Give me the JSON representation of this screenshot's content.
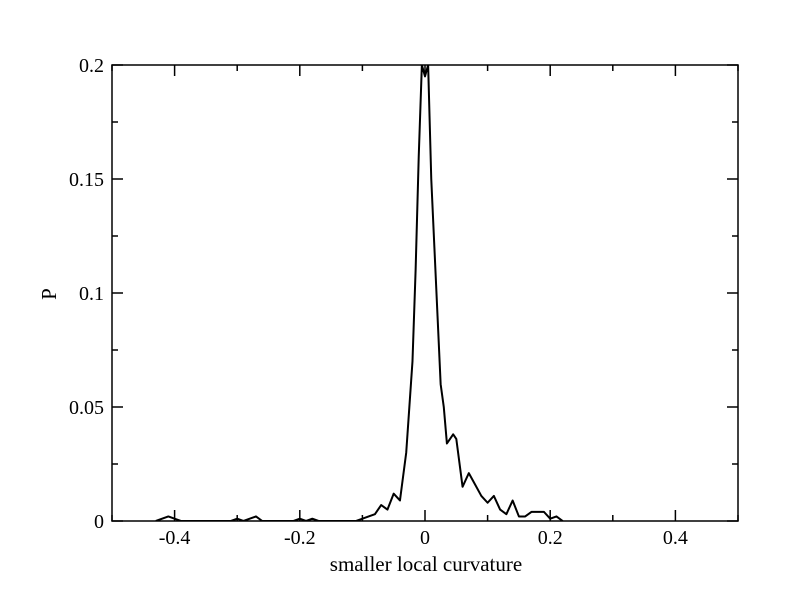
{
  "chart_data": {
    "type": "line",
    "title": "",
    "xlabel": "smaller local curvature",
    "ylabel": "P",
    "xlim": [
      -0.5,
      0.5
    ],
    "ylim": [
      0,
      0.2
    ],
    "x_major_ticks": [
      -0.4,
      -0.2,
      0,
      0.2,
      0.4
    ],
    "x_tick_labels": [
      "-0.4",
      "-0.2",
      "0",
      "0.2",
      "0.4"
    ],
    "x_minor_ticks": [
      -0.5,
      -0.3,
      -0.1,
      0.1,
      0.3,
      0.5
    ],
    "y_major_ticks": [
      0,
      0.05,
      0.1,
      0.15,
      0.2
    ],
    "y_tick_labels": [
      "0",
      "0.05",
      "0.1",
      "0.15",
      "0.2"
    ],
    "y_minor_ticks": [
      0.025,
      0.075,
      0.125,
      0.175
    ],
    "grid": false,
    "legend": "none",
    "line_color": "#000000",
    "series": [
      {
        "x": [
          -0.43,
          -0.42,
          -0.41,
          -0.4,
          -0.39,
          -0.31,
          -0.3,
          -0.29,
          -0.28,
          -0.27,
          -0.26,
          -0.21,
          -0.2,
          -0.19,
          -0.18,
          -0.17,
          -0.11,
          -0.1,
          -0.09,
          -0.08,
          -0.07,
          -0.06,
          -0.05,
          -0.04,
          -0.03,
          -0.025,
          -0.02,
          -0.015,
          -0.01,
          -0.005,
          0.0,
          0.005,
          0.01,
          0.015,
          0.02,
          0.025,
          0.03,
          0.035,
          0.04,
          0.045,
          0.05,
          0.06,
          0.07,
          0.08,
          0.09,
          0.1,
          0.11,
          0.12,
          0.13,
          0.14,
          0.15,
          0.16,
          0.17,
          0.18,
          0.19,
          0.2,
          0.21,
          0.22
        ],
        "y": [
          0,
          0.001,
          0.002,
          0.001,
          0,
          0,
          0.001,
          0,
          0.001,
          0.002,
          0,
          0,
          0.001,
          0,
          0.001,
          0,
          0,
          0.001,
          0.002,
          0.003,
          0.007,
          0.005,
          0.012,
          0.009,
          0.03,
          0.05,
          0.07,
          0.11,
          0.16,
          0.2,
          0.195,
          0.2,
          0.15,
          0.12,
          0.09,
          0.06,
          0.05,
          0.034,
          0.036,
          0.038,
          0.036,
          0.015,
          0.021,
          0.016,
          0.011,
          0.008,
          0.011,
          0.005,
          0.003,
          0.009,
          0.002,
          0.002,
          0.004,
          0.004,
          0.004,
          0.001,
          0.002,
          0
        ]
      }
    ]
  }
}
